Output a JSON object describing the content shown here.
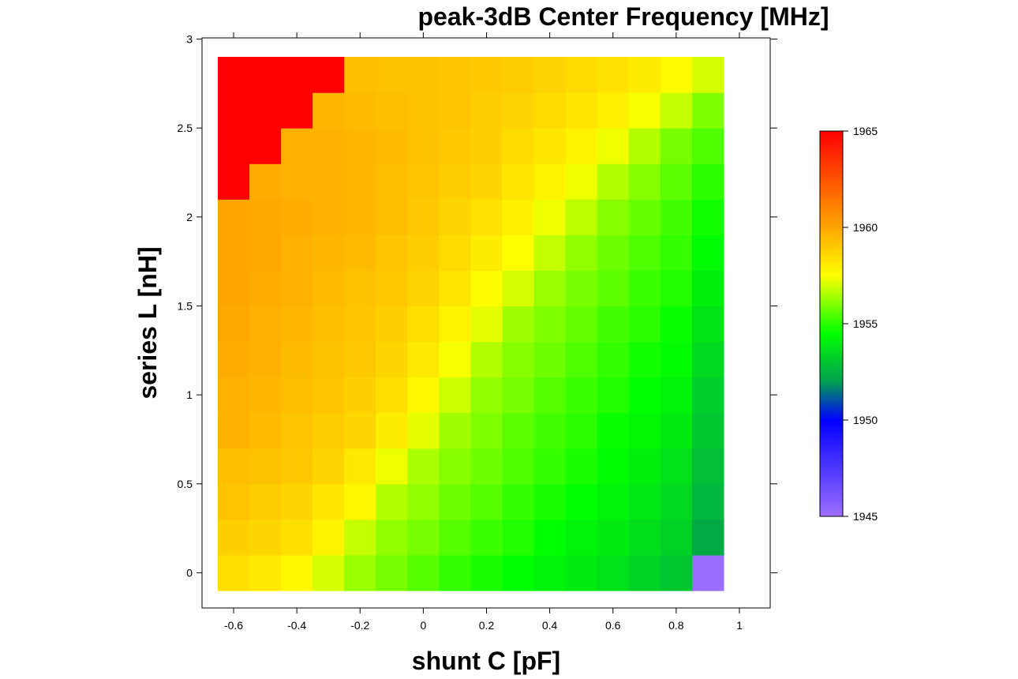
{
  "chart_data": {
    "type": "heatmap",
    "title": "peak-3dB Center Frequency [MHz]",
    "xlabel": "shunt C [pF]",
    "ylabel": "series L [nH]",
    "x": [
      -0.6,
      -0.5,
      -0.4,
      -0.3,
      -0.2,
      -0.1,
      0.0,
      0.1,
      0.2,
      0.3,
      0.4,
      0.5,
      0.6,
      0.7,
      0.8,
      0.9,
      1.0
    ],
    "y": [
      0.0,
      0.2,
      0.4,
      0.6,
      0.8,
      1.0,
      1.2,
      1.4,
      1.6,
      1.8,
      2.0,
      2.2,
      2.4,
      2.6,
      2.8
    ],
    "xlim": [
      -0.65,
      1.05
    ],
    "ylim": [
      -0.1,
      2.9
    ],
    "x_ticks": [
      "-0.6",
      "-0.4",
      "-0.2",
      "0",
      "0.2",
      "0.4",
      "0.6",
      "0.8",
      "1"
    ],
    "y_ticks": [
      "0",
      "0.5",
      "1",
      "1.5",
      "2",
      "2.5",
      "3"
    ],
    "colorbar": {
      "min": 1945,
      "max": 1965,
      "ticks": [
        "1945",
        "1950",
        "1955",
        "1960",
        "1965"
      ],
      "stops": [
        {
          "value": 1945,
          "color": "#9c6dff"
        },
        {
          "value": 1950,
          "color": "#0000ff"
        },
        {
          "value": 1952,
          "color": "#00a050"
        },
        {
          "value": 1954.5,
          "color": "#00ff00"
        },
        {
          "value": 1957.5,
          "color": "#ffff00"
        },
        {
          "value": 1960,
          "color": "#ffa500"
        },
        {
          "value": 1965,
          "color": "#ff0000"
        }
      ]
    },
    "values": [
      [
        1958.4,
        1958.1,
        1957.7,
        1957.0,
        1956.3,
        1955.9,
        1955.5,
        1955.1,
        1954.8,
        1954.5,
        1954.2,
        1954.0,
        1953.7,
        1953.3,
        1953.0,
        1945.0,
        null
      ],
      [
        1958.8,
        1958.6,
        1958.4,
        1957.8,
        1956.8,
        1956.2,
        1955.9,
        1955.5,
        1955.2,
        1954.9,
        1954.5,
        1954.2,
        1954.0,
        1953.6,
        1953.3,
        1952.3,
        null
      ],
      [
        1959.1,
        1958.9,
        1958.6,
        1958.2,
        1957.7,
        1956.6,
        1956.2,
        1955.8,
        1955.5,
        1955.1,
        1954.8,
        1954.5,
        1954.2,
        1953.9,
        1953.5,
        1952.6,
        null
      ],
      [
        1959.3,
        1959.2,
        1959.0,
        1958.7,
        1958.1,
        1957.3,
        1956.5,
        1956.1,
        1955.8,
        1955.4,
        1955.1,
        1954.8,
        1954.4,
        1954.1,
        1953.7,
        1952.8,
        null
      ],
      [
        1959.6,
        1959.4,
        1959.1,
        1958.9,
        1958.6,
        1958.0,
        1957.2,
        1956.4,
        1956.0,
        1955.6,
        1955.3,
        1955.0,
        1954.6,
        1954.3,
        1954.0,
        1953.0,
        null
      ],
      [
        1959.7,
        1959.5,
        1959.3,
        1959.1,
        1958.8,
        1958.4,
        1957.7,
        1956.9,
        1956.2,
        1955.9,
        1955.5,
        1955.2,
        1954.9,
        1954.5,
        1954.2,
        1953.2,
        null
      ],
      [
        1959.8,
        1959.6,
        1959.4,
        1959.2,
        1959.0,
        1958.6,
        1958.1,
        1957.4,
        1956.6,
        1956.1,
        1955.8,
        1955.4,
        1955.1,
        1954.7,
        1954.4,
        1953.5,
        null
      ],
      [
        1959.9,
        1959.7,
        1959.5,
        1959.3,
        1959.1,
        1958.8,
        1958.4,
        1957.8,
        1957.2,
        1956.4,
        1956.0,
        1955.7,
        1955.3,
        1955.0,
        1954.6,
        1953.8,
        null
      ],
      [
        1960.0,
        1959.8,
        1959.6,
        1959.4,
        1959.2,
        1959.0,
        1958.7,
        1958.2,
        1957.6,
        1957.0,
        1956.3,
        1955.9,
        1955.6,
        1955.2,
        1954.9,
        1954.1,
        null
      ],
      [
        1960.0,
        1959.9,
        1959.7,
        1959.5,
        1959.4,
        1959.1,
        1958.9,
        1958.5,
        1958.0,
        1957.5,
        1956.8,
        1956.2,
        1955.8,
        1955.4,
        1955.1,
        1954.4,
        null
      ],
      [
        1960.0,
        1959.9,
        1959.8,
        1959.6,
        1959.5,
        1959.3,
        1959.0,
        1958.7,
        1958.3,
        1957.9,
        1957.3,
        1956.7,
        1956.1,
        1955.7,
        1955.3,
        1954.7,
        null
      ],
      [
        1965.0,
        1959.8,
        1959.7,
        1959.6,
        1959.5,
        1959.3,
        1959.1,
        1958.9,
        1958.6,
        1958.2,
        1957.8,
        1957.3,
        1956.6,
        1956.1,
        1955.6,
        1955.0,
        null
      ],
      [
        1965.0,
        1965.0,
        1959.7,
        1959.6,
        1959.5,
        1959.4,
        1959.2,
        1959.0,
        1958.8,
        1958.5,
        1958.2,
        1957.8,
        1957.3,
        1956.6,
        1955.9,
        1955.4,
        null
      ],
      [
        1965.0,
        1965.0,
        1965.0,
        1959.5,
        1959.4,
        1959.3,
        1959.2,
        1959.1,
        1958.9,
        1958.7,
        1958.5,
        1958.2,
        1957.9,
        1957.4,
        1956.8,
        1956.0,
        null
      ],
      [
        1965.0,
        1965.0,
        1965.0,
        1965.0,
        1959.3,
        1959.2,
        1959.2,
        1959.1,
        1959.0,
        1958.9,
        1958.7,
        1958.5,
        1958.3,
        1958.0,
        1957.6,
        1957.0,
        null
      ]
    ]
  }
}
